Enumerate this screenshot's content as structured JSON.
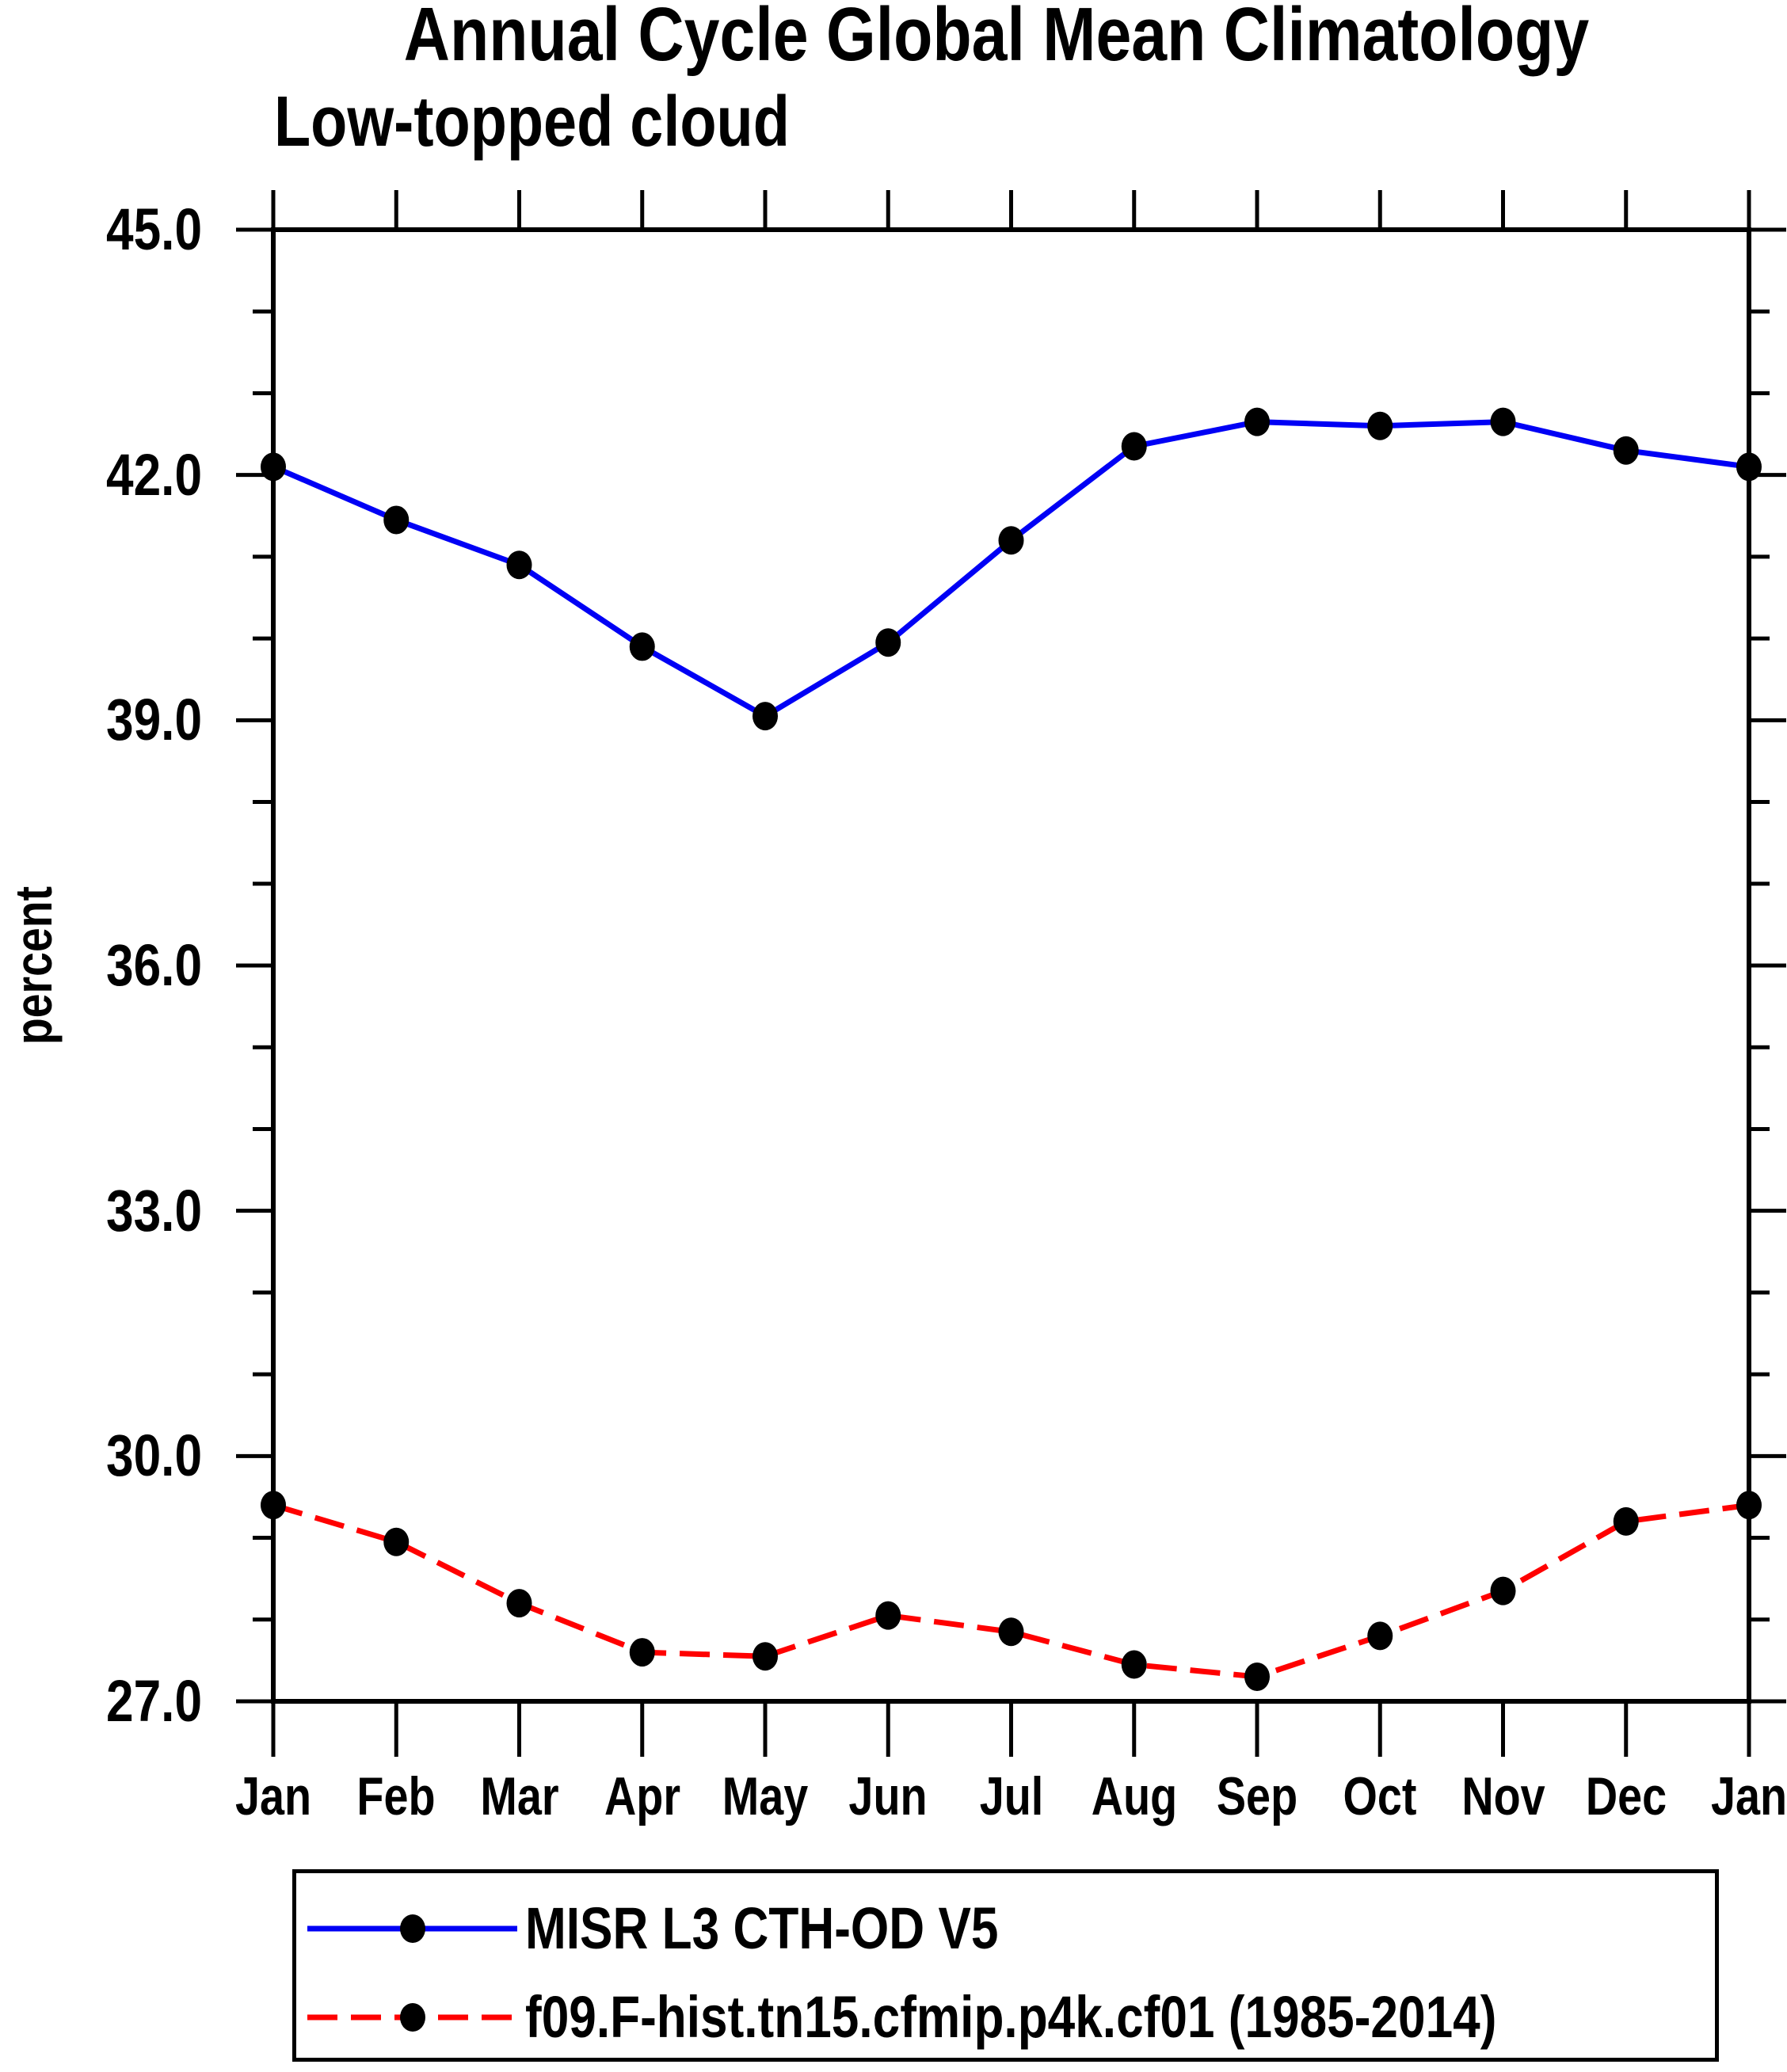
{
  "header": {
    "title": "Annual Cycle Global Mean Climatology",
    "subtitle": "Low-topped cloud"
  },
  "axes": {
    "y_label": "percent"
  },
  "legend": {
    "items": [
      {
        "label": "MISR L3 CTH-OD V5"
      },
      {
        "label": "f09.F-hist.tn15.cfmip.p4k.cf01 (1985-2014)"
      }
    ]
  },
  "colors": {
    "misr_line": "#0000F5",
    "model_line": "#FF0000",
    "marker": "#000000",
    "axis": "#000000"
  },
  "chart_data": {
    "type": "line",
    "title": "Annual Cycle Global Mean Climatology",
    "subtitle": "Low-topped cloud",
    "xlabel": "",
    "ylabel": "percent",
    "categories": [
      "Jan",
      "Feb",
      "Mar",
      "Apr",
      "May",
      "Jun",
      "Jul",
      "Aug",
      "Sep",
      "Oct",
      "Nov",
      "Dec",
      "Jan"
    ],
    "ylim": [
      27.0,
      45.0
    ],
    "y_major_ticks": [
      27.0,
      30.0,
      33.0,
      36.0,
      39.0,
      42.0,
      45.0
    ],
    "y_tick_labels": [
      "27.0",
      "30.0",
      "33.0",
      "36.0",
      "39.0",
      "42.0",
      "45.0"
    ],
    "y_minor_tick_interval": 1.0,
    "grid": false,
    "legend_position": "bottom",
    "series": [
      {
        "name": "MISR L3 CTH-OD V5",
        "color": "#0000F5",
        "line_style": "solid",
        "marker": "filled-circle",
        "marker_color": "#000000",
        "values": [
          42.1,
          41.45,
          40.9,
          39.9,
          39.05,
          39.95,
          41.2,
          42.35,
          42.65,
          42.6,
          42.65,
          42.3,
          42.1
        ]
      },
      {
        "name": "f09.F-hist.tn15.cfmip.p4k.cf01 (1985-2014)",
        "color": "#FF0000",
        "line_style": "dashed",
        "marker": "filled-circle",
        "marker_color": "#000000",
        "values": [
          29.4,
          28.95,
          28.2,
          27.6,
          27.55,
          28.05,
          27.85,
          27.45,
          27.3,
          27.8,
          28.35,
          29.2,
          29.4
        ]
      }
    ]
  }
}
